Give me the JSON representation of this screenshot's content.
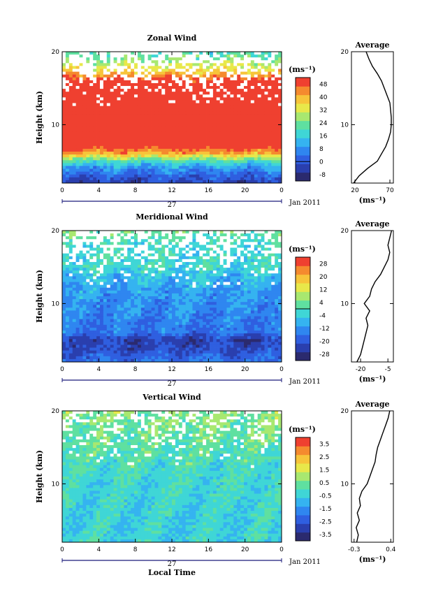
{
  "figure": {
    "x_label": "Local Time",
    "date_label": "Jan 2011",
    "day_label": "27",
    "cb_units": "(ms⁻¹)",
    "avg_units": "(ms⁻¹)",
    "height_label": "Height (km)"
  },
  "chart_data": [
    {
      "type": "heatmap",
      "title": "Zonal Wind",
      "x_ticks": [
        "0",
        "4",
        "8",
        "12",
        "16",
        "20",
        "0"
      ],
      "x_range_hours": [
        0,
        24
      ],
      "y_ticks": [
        "20",
        "10"
      ],
      "y_range_km": [
        2,
        20
      ],
      "colorbar": {
        "ticks": [
          "48",
          "40",
          "32",
          "24",
          "16",
          "8",
          "0",
          "-8"
        ],
        "range": [
          -12,
          52
        ],
        "zero_line": 0
      },
      "z_profile_km": [
        2,
        4,
        5,
        6,
        7,
        8,
        10,
        12,
        14,
        16,
        17,
        18,
        19,
        20
      ],
      "z_values_ms": [
        -4,
        8,
        20,
        40,
        52,
        58,
        60,
        58,
        54,
        52,
        40,
        32,
        24,
        20
      ],
      "average": {
        "title": "Average",
        "x_ticks": [
          "20",
          "70"
        ],
        "x_range": [
          15,
          75
        ],
        "height_km": [
          2,
          3,
          4,
          5,
          6,
          7,
          8,
          9,
          10,
          11,
          12,
          13,
          14,
          15,
          16,
          17,
          18,
          19,
          20
        ],
        "value_ms": [
          18,
          26,
          38,
          52,
          58,
          64,
          68,
          71,
          72,
          72,
          71,
          70,
          66,
          62,
          58,
          52,
          45,
          40,
          36
        ]
      }
    },
    {
      "type": "heatmap",
      "title": "Meridional Wind",
      "x_ticks": [
        "0",
        "4",
        "8",
        "12",
        "16",
        "20",
        "0"
      ],
      "x_range_hours": [
        0,
        24
      ],
      "y_ticks": [
        "20",
        "10"
      ],
      "y_range_km": [
        2,
        20
      ],
      "colorbar": {
        "ticks": [
          "28",
          "20",
          "12",
          "4",
          "-4",
          "-12",
          "-20",
          "-28"
        ],
        "range": [
          -32,
          32
        ],
        "zero_line": 0
      },
      "z_profile_km": [
        2,
        4,
        5,
        6,
        8,
        10,
        12,
        14,
        15,
        16,
        18,
        20
      ],
      "z_values_ms": [
        -16,
        -22,
        -24,
        -16,
        -14,
        -12,
        -10,
        -6,
        -2,
        -2,
        -2,
        4
      ],
      "average": {
        "title": "Average",
        "x_ticks": [
          "-20",
          "-5"
        ],
        "x_range": [
          -25,
          -2
        ],
        "height_km": [
          2,
          3,
          4,
          5,
          6,
          7,
          8,
          9,
          10,
          11,
          12,
          13,
          14,
          15,
          16,
          17,
          18,
          19,
          20
        ],
        "value_ms": [
          -22,
          -20,
          -19,
          -18,
          -17,
          -16,
          -17,
          -15,
          -18,
          -15,
          -14,
          -12,
          -9,
          -7,
          -5,
          -4,
          -5,
          -4,
          -3
        ]
      }
    },
    {
      "type": "heatmap",
      "title": "Vertical Wind",
      "x_ticks": [
        "0",
        "4",
        "8",
        "12",
        "16",
        "20",
        "0"
      ],
      "x_range_hours": [
        0,
        24
      ],
      "y_ticks": [
        "20",
        "10"
      ],
      "y_range_km": [
        2,
        20
      ],
      "colorbar": {
        "ticks": [
          "3.5",
          "2.5",
          "1.5",
          "0.5",
          "-0.5",
          "-1.5",
          "-2.5",
          "-3.5"
        ],
        "range": [
          -4,
          4
        ],
        "zero_line": null
      },
      "z_profile_km": [
        2,
        6,
        10,
        14,
        16,
        18,
        20
      ],
      "z_values_ms": [
        -0.4,
        -0.4,
        -0.3,
        0.1,
        0.3,
        0.5,
        0.7
      ],
      "average": {
        "title": "Average",
        "x_ticks": [
          "-0.3",
          "0.4"
        ],
        "x_range": [
          -0.35,
          0.45
        ],
        "height_km": [
          2,
          3,
          4,
          5,
          6,
          7,
          8,
          9,
          10,
          11,
          12,
          13,
          14,
          15,
          16,
          17,
          18,
          19,
          20
        ],
        "value_ms": [
          -0.25,
          -0.22,
          -0.26,
          -0.2,
          -0.24,
          -0.18,
          -0.2,
          -0.15,
          -0.05,
          0.0,
          0.05,
          0.1,
          0.12,
          0.15,
          0.2,
          0.25,
          0.3,
          0.35,
          0.38
        ]
      }
    }
  ],
  "colors": {
    "scale": [
      "#2b2a6e",
      "#2a3fae",
      "#2f5fe0",
      "#2f86f0",
      "#35b3f0",
      "#3fd6d6",
      "#5fe0a0",
      "#a8e870",
      "#e8e84a",
      "#f7c43a",
      "#f58a2e",
      "#ef4030"
    ],
    "frame": "#000000",
    "gap": "#ffffff"
  }
}
